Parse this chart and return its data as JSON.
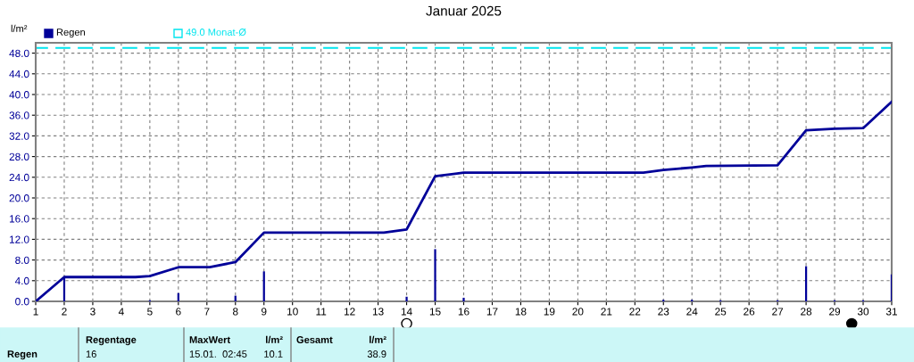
{
  "chart_data": {
    "type": "bar",
    "title": "Januar 2025",
    "ylabel": "l/m²",
    "xlim": [
      1,
      31
    ],
    "xticks": [
      1,
      2,
      3,
      4,
      5,
      6,
      7,
      8,
      9,
      10,
      11,
      12,
      13,
      14,
      15,
      16,
      17,
      18,
      19,
      20,
      21,
      22,
      23,
      24,
      25,
      26,
      27,
      28,
      29,
      30,
      31
    ],
    "ylim": [
      0,
      50
    ],
    "yticks": [
      {
        "value": 0,
        "label": "0.0"
      },
      {
        "value": 4,
        "label": "4.0"
      },
      {
        "value": 8,
        "label": "8.0"
      },
      {
        "value": 12,
        "label": "12.0"
      },
      {
        "value": 16,
        "label": "16.0"
      },
      {
        "value": 20,
        "label": "20.0"
      },
      {
        "value": 24,
        "label": "24.0"
      },
      {
        "value": 28,
        "label": "28.0"
      },
      {
        "value": 32,
        "label": "32.0"
      },
      {
        "value": 36,
        "label": "36.0"
      },
      {
        "value": 40,
        "label": "40.0"
      },
      {
        "value": 44,
        "label": "44.0"
      },
      {
        "value": 48,
        "label": "48.0"
      }
    ],
    "grid": true,
    "legend": "top left",
    "series": [
      {
        "name": "Regen",
        "color": "#000099",
        "x": [
          2,
          5,
          6,
          8,
          9,
          14,
          15,
          16,
          23,
          24,
          25,
          27,
          28,
          29,
          30,
          31
        ],
        "values": [
          4.7,
          0.2,
          1.6,
          1.1,
          5.8,
          0.9,
          10.1,
          0.7,
          0.3,
          0.3,
          0.2,
          0.2,
          6.8,
          0.2,
          0.2,
          5.2
        ]
      },
      {
        "type": "line",
        "color": "#000099",
        "x": [
          1,
          2,
          4.5,
          5,
          6,
          7.1,
          8,
          9,
          13.2,
          14,
          15,
          16,
          22.3,
          23,
          24,
          24.5,
          27,
          28,
          29,
          30,
          31
        ],
        "values": [
          0,
          4.7,
          4.7,
          4.9,
          6.6,
          6.6,
          7.6,
          13.3,
          13.3,
          13.9,
          24.2,
          24.9,
          24.9,
          25.4,
          25.9,
          26.2,
          26.3,
          33.1,
          33.4,
          33.5,
          38.6
        ]
      }
    ],
    "ref_lines": [
      {
        "axis": "y",
        "value": 49.0,
        "label": "49.0 Monat-Ø",
        "color": "#00e5ee",
        "line_style": "dashed"
      }
    ],
    "annotations": [
      "Regen",
      "Regentage",
      "16",
      "MaxWert",
      "l/m²",
      "15.01.  02:45",
      "10.1",
      "Gesamt",
      "l/m²",
      "38.9"
    ]
  }
}
